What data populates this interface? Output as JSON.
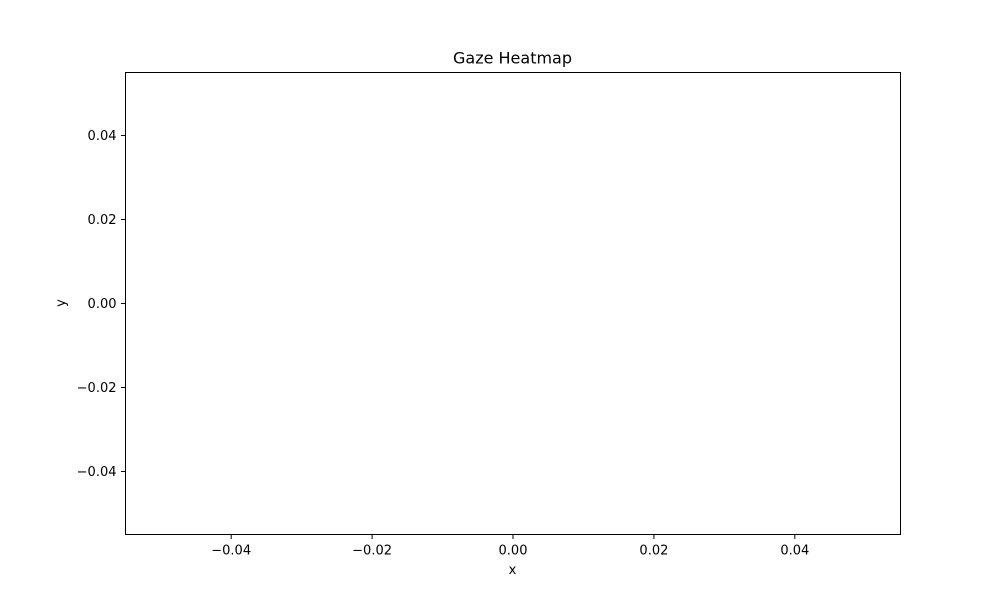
{
  "chart_data": {
    "type": "heatmap",
    "title": "Gaze Heatmap",
    "xlabel": "x",
    "ylabel": "y",
    "xlim": [
      -0.055,
      0.055
    ],
    "ylim": [
      0.055,
      -0.055
    ],
    "y_inverted": true,
    "grid": false,
    "x_ticks": [
      {
        "value": -0.04,
        "label": "−0.04"
      },
      {
        "value": -0.02,
        "label": "−0.02"
      },
      {
        "value": 0.0,
        "label": "0.00"
      },
      {
        "value": 0.02,
        "label": "0.02"
      },
      {
        "value": 0.04,
        "label": "0.04"
      }
    ],
    "y_ticks": [
      {
        "value": -0.04,
        "label": "−0.04"
      },
      {
        "value": -0.02,
        "label": "−0.02"
      },
      {
        "value": 0.0,
        "label": "0.00"
      },
      {
        "value": 0.02,
        "label": "0.02"
      },
      {
        "value": 0.04,
        "label": "0.04"
      }
    ],
    "cells": []
  }
}
